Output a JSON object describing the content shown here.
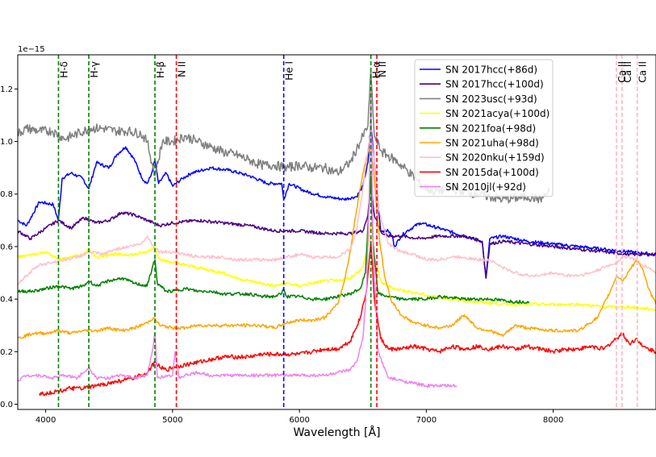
{
  "chart_data": {
    "type": "line",
    "title": "",
    "xlabel": "Wavelength [Å]",
    "ylabel": "",
    "y_offset_label": "1e−15",
    "xlim": [
      3780,
      8810
    ],
    "ylim": [
      -0.02,
      1.33
    ],
    "x_ticks": [
      4000,
      5000,
      6000,
      7000,
      8000
    ],
    "x_tick_labels": [
      "4000",
      "5000",
      "6000",
      "7000",
      "8000"
    ],
    "y_ticks": [
      0.0,
      0.2,
      0.4,
      0.6,
      0.8,
      1.0,
      1.2
    ],
    "y_tick_labels": [
      "0.0",
      "0.2",
      "0.4",
      "0.6",
      "0.8",
      "1.0",
      "1.2"
    ],
    "grid": false,
    "legend_position": "top-right",
    "lines": [
      {
        "label": "H-δ",
        "x": 4101,
        "color": "#008000",
        "style": "dashed"
      },
      {
        "label": "H-γ",
        "x": 4340,
        "color": "#008000",
        "style": "dashed"
      },
      {
        "label": "H-β",
        "x": 4861,
        "color": "#008000",
        "style": "dashed"
      },
      {
        "label": "N II",
        "x": 5030,
        "color": "#ff0000",
        "style": "dashed"
      },
      {
        "label": "He I",
        "x": 5876,
        "color": "#0000ff",
        "style": "dashed"
      },
      {
        "label": "H-α",
        "x": 6563,
        "color": "#008000",
        "style": "dashed"
      },
      {
        "label": "N II",
        "x": 6610,
        "color": "#ff0000",
        "style": "dashed"
      },
      {
        "label": "Ca II",
        "x": 8498,
        "color": "#ffb6c1",
        "style": "dashed"
      },
      {
        "label": "Ca II",
        "x": 8542,
        "color": "#ffb6c1",
        "style": "dashed"
      },
      {
        "label": "Ca II",
        "x": 8662,
        "color": "#ffb6c1",
        "style": "dashed"
      }
    ],
    "series": [
      {
        "name": "SN 2017hcc(+86d)",
        "color": "#0000ff",
        "x": [
          3780,
          3850,
          3950,
          4060,
          4100,
          4130,
          4200,
          4290,
          4340,
          4400,
          4500,
          4560,
          4630,
          4700,
          4760,
          4800,
          4830,
          4861,
          4890,
          4950,
          5000,
          5080,
          5150,
          5300,
          5450,
          5600,
          5750,
          5860,
          5876,
          5920,
          6050,
          6200,
          6350,
          6450,
          6500,
          6540,
          6563,
          6590,
          6640,
          6700,
          6730,
          6750,
          6800,
          6850,
          6950,
          7100,
          7300,
          7440,
          7470,
          7500,
          7600,
          7800,
          8000,
          8200,
          8400,
          8600,
          8810
        ],
        "y": [
          0.7,
          0.68,
          0.77,
          0.76,
          0.7,
          0.86,
          0.88,
          0.86,
          0.82,
          0.92,
          0.9,
          0.95,
          0.98,
          0.93,
          0.86,
          0.84,
          0.87,
          0.93,
          0.84,
          0.88,
          0.83,
          0.86,
          0.88,
          0.9,
          0.89,
          0.87,
          0.84,
          0.84,
          0.78,
          0.84,
          0.81,
          0.79,
          0.78,
          0.79,
          0.83,
          0.92,
          1.07,
          0.92,
          0.66,
          0.66,
          0.64,
          0.6,
          0.64,
          0.66,
          0.69,
          0.67,
          0.64,
          0.62,
          0.48,
          0.63,
          0.64,
          0.62,
          0.61,
          0.6,
          0.59,
          0.58,
          0.57
        ]
      },
      {
        "name": "SN 2017hcc(+100d)",
        "color": "#4b0082",
        "x": [
          3780,
          3880,
          4000,
          4100,
          4200,
          4300,
          4400,
          4500,
          4600,
          4700,
          4800,
          4900,
          5000,
          5200,
          5400,
          5600,
          5800,
          6000,
          6200,
          6400,
          6500,
          6540,
          6563,
          6590,
          6650,
          6700,
          6800,
          6950,
          7100,
          7300,
          7440,
          7470,
          7500,
          7600,
          7800,
          8000,
          8200,
          8400,
          8600,
          8810
        ],
        "y": [
          0.66,
          0.63,
          0.67,
          0.7,
          0.67,
          0.71,
          0.69,
          0.7,
          0.73,
          0.72,
          0.7,
          0.68,
          0.69,
          0.7,
          0.69,
          0.68,
          0.66,
          0.66,
          0.65,
          0.65,
          0.66,
          0.72,
          0.85,
          0.72,
          0.65,
          0.64,
          0.64,
          0.63,
          0.64,
          0.64,
          0.62,
          0.48,
          0.61,
          0.62,
          0.61,
          0.6,
          0.59,
          0.58,
          0.57,
          0.57
        ]
      },
      {
        "name": "SN 2023usc(+93d)",
        "color": "#808080",
        "x": [
          3780,
          3850,
          3950,
          4050,
          4150,
          4250,
          4350,
          4450,
          4550,
          4650,
          4750,
          4800,
          4861,
          4920,
          5000,
          5100,
          5200,
          5300,
          5400,
          5500,
          5600,
          5700,
          5800,
          5900,
          6000,
          6100,
          6200,
          6300,
          6400,
          6450,
          6500,
          6540,
          6563,
          6590,
          6650,
          6750,
          6850,
          6950,
          7050,
          7200,
          7400,
          7600,
          7800,
          7900,
          7970
        ],
        "y": [
          1.03,
          1.05,
          1.04,
          1.04,
          1.01,
          1.03,
          1.05,
          1.05,
          1.04,
          1.04,
          1.03,
          1.0,
          0.87,
          1.0,
          1.0,
          1.02,
          1.0,
          0.98,
          0.96,
          0.95,
          0.93,
          0.91,
          0.91,
          0.9,
          0.91,
          0.9,
          0.9,
          0.88,
          0.92,
          0.97,
          1.02,
          1.06,
          1.27,
          1.02,
          0.96,
          0.93,
          0.89,
          0.84,
          0.81,
          0.82,
          0.8,
          0.78,
          0.79,
          0.78,
          0.81
        ]
      },
      {
        "name": "SN 2021acya(+100d)",
        "color": "#ffff00",
        "x": [
          3780,
          3900,
          4000,
          4100,
          4200,
          4300,
          4340,
          4400,
          4500,
          4600,
          4700,
          4800,
          4861,
          4900,
          5000,
          5100,
          5200,
          5300,
          5400,
          5500,
          5600,
          5700,
          5800,
          5900,
          6000,
          6100,
          6200,
          6300,
          6400,
          6500,
          6540,
          6563,
          6590,
          6650,
          6750,
          6850,
          6950,
          7050,
          7200,
          7400,
          7600,
          7800,
          8000,
          8200,
          8400,
          8600,
          8810
        ],
        "y": [
          0.56,
          0.57,
          0.58,
          0.55,
          0.56,
          0.57,
          0.59,
          0.56,
          0.57,
          0.57,
          0.57,
          0.58,
          0.6,
          0.55,
          0.54,
          0.53,
          0.52,
          0.51,
          0.5,
          0.48,
          0.47,
          0.46,
          0.45,
          0.46,
          0.45,
          0.46,
          0.47,
          0.47,
          0.48,
          0.52,
          0.6,
          0.69,
          0.55,
          0.46,
          0.44,
          0.43,
          0.42,
          0.41,
          0.4,
          0.39,
          0.38,
          0.38,
          0.38,
          0.38,
          0.37,
          0.37,
          0.36
        ]
      },
      {
        "name": "SN 2021foa(+98d)",
        "color": "#008000",
        "x": [
          3780,
          3900,
          4000,
          4100,
          4200,
          4300,
          4340,
          4400,
          4500,
          4600,
          4700,
          4800,
          4840,
          4861,
          4880,
          4950,
          5000,
          5100,
          5200,
          5300,
          5400,
          5500,
          5600,
          5700,
          5800,
          5860,
          5876,
          5900,
          6000,
          6100,
          6200,
          6300,
          6400,
          6480,
          6520,
          6545,
          6563,
          6580,
          6620,
          6700,
          6800,
          6900,
          7000,
          7100,
          7300,
          7500,
          7700,
          7810
        ],
        "y": [
          0.43,
          0.43,
          0.44,
          0.45,
          0.44,
          0.45,
          0.47,
          0.45,
          0.47,
          0.48,
          0.46,
          0.45,
          0.52,
          0.55,
          0.46,
          0.43,
          0.43,
          0.44,
          0.43,
          0.43,
          0.42,
          0.42,
          0.42,
          0.41,
          0.41,
          0.42,
          0.44,
          0.41,
          0.41,
          0.4,
          0.4,
          0.41,
          0.42,
          0.44,
          0.5,
          0.72,
          0.87,
          0.62,
          0.42,
          0.41,
          0.4,
          0.4,
          0.4,
          0.41,
          0.4,
          0.4,
          0.39,
          0.39
        ]
      },
      {
        "name": "SN 2021uha(+98d)",
        "color": "#ffa500",
        "x": [
          3780,
          3900,
          4000,
          4100,
          4200,
          4300,
          4400,
          4500,
          4600,
          4700,
          4800,
          4850,
          4900,
          5000,
          5100,
          5200,
          5300,
          5400,
          5500,
          5600,
          5700,
          5800,
          5900,
          6000,
          6100,
          6200,
          6300,
          6350,
          6400,
          6450,
          6500,
          6540,
          6563,
          6590,
          6630,
          6670,
          6720,
          6800,
          6900,
          7000,
          7100,
          7200,
          7300,
          7400,
          7500,
          7600,
          7700,
          7800,
          8000,
          8200,
          8350,
          8450,
          8500,
          8550,
          8600,
          8660,
          8700,
          8750,
          8810
        ],
        "y": [
          0.25,
          0.27,
          0.27,
          0.28,
          0.27,
          0.28,
          0.28,
          0.29,
          0.28,
          0.29,
          0.31,
          0.33,
          0.3,
          0.29,
          0.29,
          0.3,
          0.3,
          0.3,
          0.3,
          0.3,
          0.3,
          0.29,
          0.31,
          0.32,
          0.32,
          0.33,
          0.38,
          0.46,
          0.58,
          0.74,
          0.88,
          0.96,
          0.98,
          0.86,
          0.63,
          0.49,
          0.4,
          0.34,
          0.31,
          0.3,
          0.29,
          0.3,
          0.34,
          0.29,
          0.28,
          0.26,
          0.3,
          0.29,
          0.28,
          0.28,
          0.33,
          0.43,
          0.49,
          0.47,
          0.51,
          0.55,
          0.52,
          0.44,
          0.38
        ]
      },
      {
        "name": "SN 2020nku(+159d)",
        "color": "#ffc0cb",
        "x": [
          3780,
          3850,
          3950,
          4050,
          4150,
          4250,
          4350,
          4450,
          4550,
          4650,
          4750,
          4800,
          4850,
          4900,
          5000,
          5100,
          5200,
          5300,
          5400,
          5500,
          5600,
          5700,
          5800,
          5900,
          6000,
          6100,
          6200,
          6300,
          6400,
          6450,
          6500,
          6540,
          6563,
          6590,
          6620,
          6700,
          6800,
          6900,
          7000,
          7100,
          7200,
          7300,
          7400,
          7500,
          7600,
          7700,
          7800,
          7900,
          8000,
          8100,
          8200,
          8300,
          8400,
          8500,
          8550,
          8600,
          8650,
          8700,
          8750,
          8810
        ],
        "y": [
          0.46,
          0.49,
          0.53,
          0.54,
          0.55,
          0.56,
          0.58,
          0.57,
          0.59,
          0.6,
          0.61,
          0.64,
          0.6,
          0.58,
          0.58,
          0.57,
          0.56,
          0.56,
          0.56,
          0.55,
          0.55,
          0.55,
          0.55,
          0.56,
          0.57,
          0.56,
          0.56,
          0.56,
          0.59,
          0.66,
          0.82,
          0.97,
          1.03,
          0.92,
          0.75,
          0.61,
          0.58,
          0.57,
          0.55,
          0.55,
          0.56,
          0.56,
          0.55,
          0.55,
          0.52,
          0.5,
          0.49,
          0.49,
          0.5,
          0.49,
          0.49,
          0.5,
          0.52,
          0.54,
          0.56,
          0.56,
          0.55,
          0.53,
          0.52,
          0.5
        ]
      },
      {
        "name": "SN 2015da(+100d)",
        "color": "#ff0000",
        "x": [
          3950,
          4000,
          4100,
          4200,
          4300,
          4400,
          4500,
          4600,
          4700,
          4800,
          4861,
          4900,
          4950,
          5000,
          5100,
          5200,
          5300,
          5400,
          5500,
          5600,
          5700,
          5800,
          5900,
          6000,
          6100,
          6200,
          6300,
          6400,
          6480,
          6530,
          6563,
          6590,
          6640,
          6700,
          6800,
          6900,
          7000,
          7100,
          7200,
          7300,
          7400,
          7500,
          7600,
          7700,
          7800,
          7900,
          8000,
          8100,
          8200,
          8300,
          8400,
          8498,
          8542,
          8600,
          8662,
          8700,
          8750,
          8810
        ],
        "y": [
          0.04,
          0.04,
          0.05,
          0.06,
          0.06,
          0.07,
          0.08,
          0.09,
          0.1,
          0.12,
          0.16,
          0.14,
          0.13,
          0.14,
          0.15,
          0.16,
          0.17,
          0.18,
          0.18,
          0.18,
          0.19,
          0.19,
          0.19,
          0.19,
          0.2,
          0.21,
          0.21,
          0.24,
          0.33,
          0.44,
          0.62,
          0.4,
          0.25,
          0.21,
          0.21,
          0.22,
          0.21,
          0.2,
          0.22,
          0.21,
          0.22,
          0.21,
          0.22,
          0.21,
          0.22,
          0.21,
          0.2,
          0.21,
          0.21,
          0.22,
          0.21,
          0.25,
          0.27,
          0.23,
          0.25,
          0.22,
          0.21,
          0.2
        ]
      },
      {
        "name": "SN 2010jl(+92d)",
        "color": "#ee82ee",
        "x": [
          3780,
          3850,
          3950,
          4050,
          4150,
          4250,
          4340,
          4400,
          4500,
          4600,
          4700,
          4800,
          4840,
          4861,
          4880,
          4950,
          5000,
          5020,
          5050,
          5100,
          5200,
          5300,
          5400,
          5500,
          5600,
          5700,
          5800,
          5900,
          6000,
          6100,
          6200,
          6300,
          6400,
          6450,
          6500,
          6530,
          6550,
          6563,
          6580,
          6620,
          6700,
          6800,
          6900,
          7000,
          7100,
          7200,
          7240
        ],
        "y": [
          0.09,
          0.11,
          0.11,
          0.1,
          0.11,
          0.1,
          0.14,
          0.1,
          0.1,
          0.11,
          0.1,
          0.11,
          0.2,
          0.27,
          0.1,
          0.11,
          0.11,
          0.2,
          0.1,
          0.11,
          0.12,
          0.11,
          0.11,
          0.11,
          0.11,
          0.11,
          0.11,
          0.11,
          0.11,
          0.11,
          0.11,
          0.12,
          0.13,
          0.16,
          0.25,
          0.45,
          0.8,
          1.2,
          0.6,
          0.2,
          0.1,
          0.09,
          0.08,
          0.07,
          0.07,
          0.07,
          0.07
        ]
      }
    ]
  }
}
